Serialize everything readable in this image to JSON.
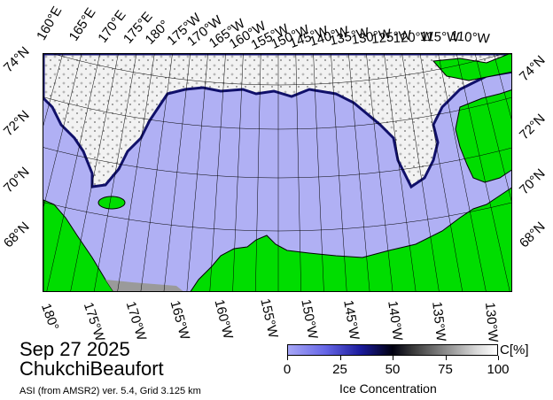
{
  "map": {
    "date": "Sep 27 2025",
    "region": "ChukchiBeaufort",
    "credit": "ASI (from AMSR2) ver. 5.4,  Grid 3.125 km",
    "top_lon_labels": [
      "160°E",
      "165°E",
      "170°E",
      "175°E",
      "180°",
      "175°W",
      "170°W",
      "165°W",
      "160°W",
      "155°W",
      "150°W",
      "145°W",
      "140°W",
      "135°W",
      "130°W",
      "125°W",
      "120°W",
      "115°W",
      "110°W"
    ],
    "bottom_lon_labels": [
      "180°",
      "175°W",
      "170°W",
      "165°W",
      "160°W",
      "155°W",
      "150°W",
      "145°W",
      "140°W",
      "135°W",
      "130°W"
    ],
    "left_lat_labels": [
      "74°N",
      "72°N",
      "70°N",
      "68°N"
    ],
    "right_lat_labels": [
      "74°N",
      "72°N",
      "70°N",
      "68°N"
    ],
    "colors": {
      "ocean": "#b0b0f4",
      "land": "#00dd00",
      "ice_edge": "#10106a",
      "ice_pack": "#ffffff",
      "grid": "#000000",
      "no_data": "#9a9a9a"
    }
  },
  "colorbar": {
    "title": "Ice Concentration",
    "unit": "C[%]",
    "ticks": [
      "0",
      "25",
      "50",
      "75",
      "100"
    ]
  }
}
